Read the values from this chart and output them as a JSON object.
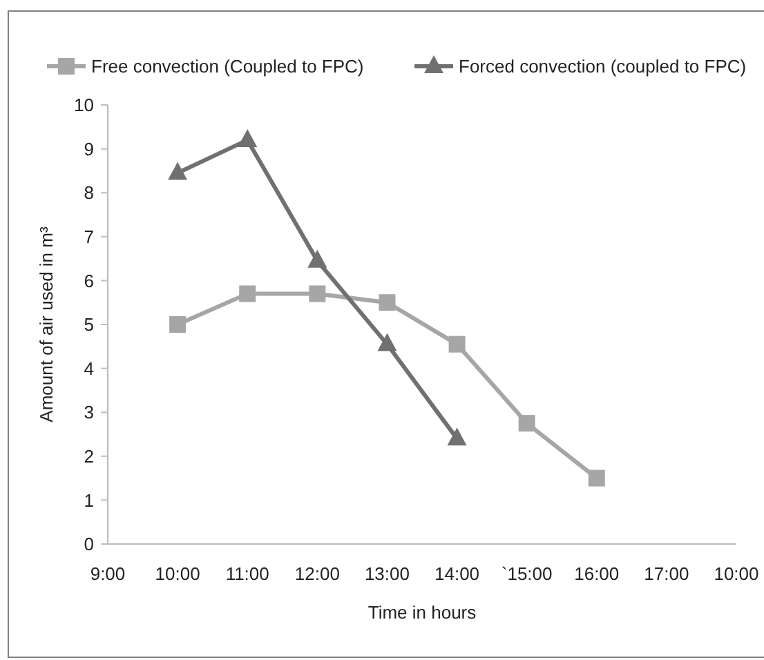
{
  "chart_data": {
    "type": "line",
    "xlabel": "Time in hours",
    "ylabel": "Amount of air used in m³",
    "categories": [
      "9:00",
      "10:00",
      "11:00",
      "12:00",
      "13:00",
      "14:00",
      "`15:00",
      "16:00",
      "17:00",
      "10:00"
    ],
    "ylim": [
      0,
      10
    ],
    "yticks": [
      0,
      1,
      2,
      3,
      4,
      5,
      6,
      7,
      8,
      9,
      10
    ],
    "grid": false,
    "legend": "top",
    "line_style": "solid",
    "series": [
      {
        "name": "Free convection (Coupled to FPC)",
        "color": "#a6a6a6",
        "marker": "square",
        "values": [
          null,
          5.0,
          5.7,
          5.7,
          5.5,
          4.55,
          2.75,
          1.5,
          null,
          null
        ]
      },
      {
        "name": "Forced convection (coupled to FPC)",
        "color": "#707070",
        "marker": "triangle",
        "values": [
          null,
          8.45,
          9.2,
          6.45,
          4.55,
          2.4,
          null,
          null,
          null,
          null
        ]
      }
    ]
  }
}
